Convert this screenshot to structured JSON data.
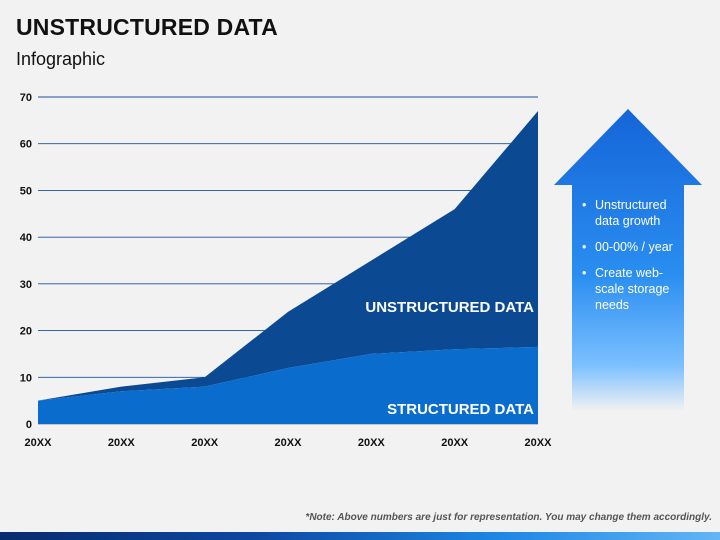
{
  "header": {
    "title": "UNSTRUCTURED DATA",
    "subtitle": "Infographic"
  },
  "chart_data": {
    "type": "area",
    "stacked": true,
    "x": [
      "20XX",
      "20XX",
      "20XX",
      "20XX",
      "20XX",
      "20XX",
      "20XX"
    ],
    "y_ticks": [
      0,
      10,
      20,
      30,
      40,
      50,
      60,
      70
    ],
    "ylim": [
      0,
      70
    ],
    "grid": true,
    "series": [
      {
        "name": "STRUCTURED DATA",
        "values": [
          5,
          7,
          8,
          12,
          15,
          16,
          16.5
        ],
        "color": "#0a6ccd"
      },
      {
        "name": "UNSTRUCTURED DATA",
        "values": [
          0,
          1,
          2,
          12,
          20,
          30,
          50.5
        ],
        "color": "#0b4a92"
      }
    ]
  },
  "callout": {
    "bullets": [
      "Unstructured data growth",
      "00-00% / year",
      "Create web-scale storage needs"
    ],
    "arrow_color": "#1e7fe0"
  },
  "footer": {
    "note": "*Note: Above numbers are just for representation. You may change them accordingly."
  }
}
